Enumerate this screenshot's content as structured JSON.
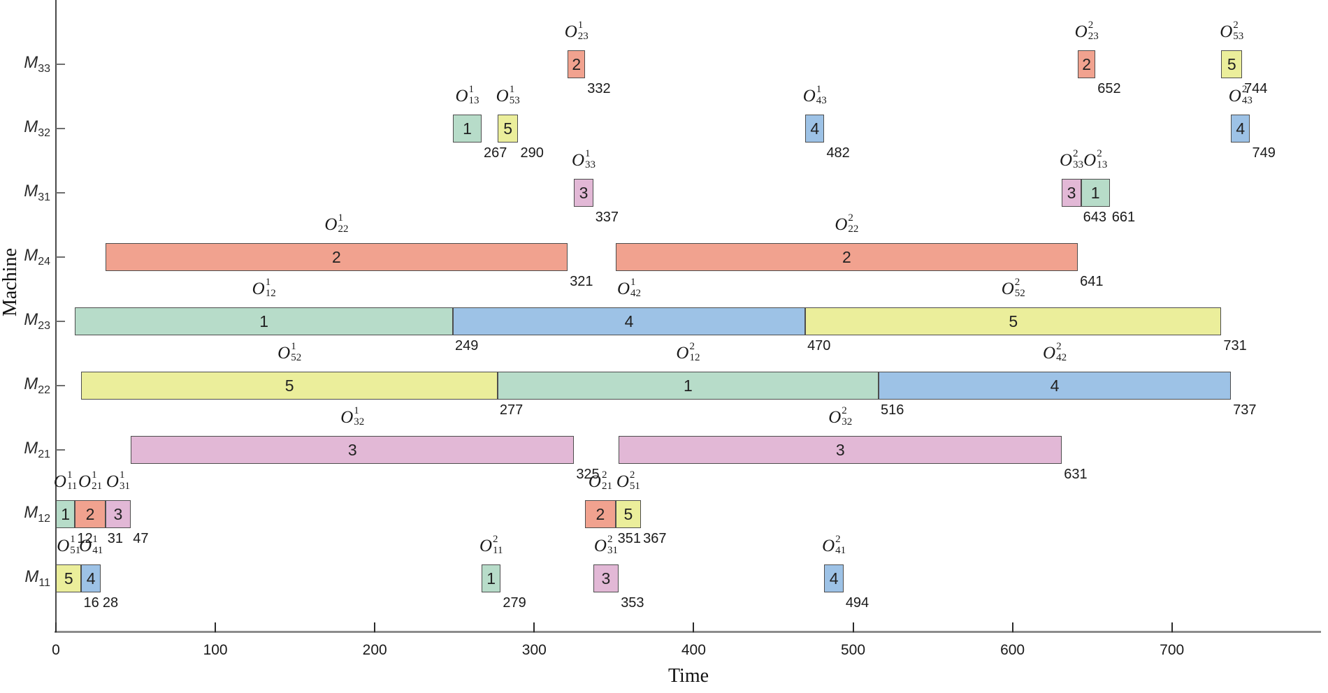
{
  "figure": {
    "background": "#ffffff"
  },
  "chart_data": {
    "type": "gantt",
    "title": "",
    "xlabel": "Time",
    "ylabel": "Machine",
    "xlim": [
      0,
      798
    ],
    "xticks": [
      0,
      100,
      200,
      300,
      400,
      500,
      600,
      700
    ],
    "grid": "off",
    "machines_bottom_to_top": [
      "M11",
      "M12",
      "M21",
      "M22",
      "M23",
      "M24",
      "M31",
      "M32",
      "M33"
    ],
    "job_colors": {
      "1": "#b7dcc9",
      "2": "#f1a28f",
      "3": "#e2b8d6",
      "4": "#9dc2e6",
      "5": "#ebee9b"
    },
    "bar_border_color": "#4d4d4d",
    "operations": [
      {
        "machine": "M11",
        "job": 5,
        "pass": 1,
        "op": "51",
        "start": 0,
        "end": 16,
        "end_label": "16"
      },
      {
        "machine": "M11",
        "job": 4,
        "pass": 1,
        "op": "41",
        "start": 16,
        "end": 28,
        "end_label": "28"
      },
      {
        "machine": "M11",
        "job": 1,
        "pass": 2,
        "op": "11",
        "start": 267,
        "end": 279,
        "end_label": "279"
      },
      {
        "machine": "M11",
        "job": 3,
        "pass": 2,
        "op": "31",
        "start": 337,
        "end": 353,
        "end_label": "353"
      },
      {
        "machine": "M11",
        "job": 4,
        "pass": 2,
        "op": "41",
        "start": 482,
        "end": 494,
        "end_label": "494"
      },
      {
        "machine": "M12",
        "job": 1,
        "pass": 1,
        "op": "11",
        "start": 0,
        "end": 12,
        "end_label": "12"
      },
      {
        "machine": "M12",
        "job": 2,
        "pass": 1,
        "op": "21",
        "start": 12,
        "end": 31,
        "end_label": "31"
      },
      {
        "machine": "M12",
        "job": 3,
        "pass": 1,
        "op": "31",
        "start": 31,
        "end": 47,
        "end_label": "47"
      },
      {
        "machine": "M12",
        "job": 2,
        "pass": 2,
        "op": "21",
        "start": 332,
        "end": 351,
        "end_label": "351"
      },
      {
        "machine": "M12",
        "job": 5,
        "pass": 2,
        "op": "51",
        "start": 351,
        "end": 367,
        "end_label": "367"
      },
      {
        "machine": "M21",
        "job": 3,
        "pass": 1,
        "op": "32",
        "start": 47,
        "end": 325,
        "end_label": "325"
      },
      {
        "machine": "M21",
        "job": 3,
        "pass": 2,
        "op": "32",
        "start": 353,
        "end": 631,
        "end_label": "631"
      },
      {
        "machine": "M22",
        "job": 5,
        "pass": 1,
        "op": "52",
        "start": 16,
        "end": 277,
        "end_label": "277"
      },
      {
        "machine": "M22",
        "job": 1,
        "pass": 2,
        "op": "12",
        "start": 277,
        "end": 516,
        "end_label": "516"
      },
      {
        "machine": "M22",
        "job": 4,
        "pass": 2,
        "op": "42",
        "start": 516,
        "end": 737,
        "end_label": "737"
      },
      {
        "machine": "M23",
        "job": 1,
        "pass": 1,
        "op": "12",
        "start": 12,
        "end": 249,
        "end_label": "249"
      },
      {
        "machine": "M23",
        "job": 4,
        "pass": 1,
        "op": "42",
        "start": 249,
        "end": 470,
        "end_label": "470"
      },
      {
        "machine": "M23",
        "job": 5,
        "pass": 2,
        "op": "52",
        "start": 470,
        "end": 731,
        "end_label": "731"
      },
      {
        "machine": "M24",
        "job": 2,
        "pass": 1,
        "op": "22",
        "start": 31,
        "end": 321,
        "end_label": "321"
      },
      {
        "machine": "M24",
        "job": 2,
        "pass": 2,
        "op": "22",
        "start": 351,
        "end": 641,
        "end_label": "641"
      },
      {
        "machine": "M31",
        "job": 3,
        "pass": 1,
        "op": "33",
        "start": 325,
        "end": 337,
        "end_label": "337"
      },
      {
        "machine": "M31",
        "job": 3,
        "pass": 2,
        "op": "33",
        "start": 631,
        "end": 643,
        "end_label": "643"
      },
      {
        "machine": "M31",
        "job": 1,
        "pass": 2,
        "op": "13",
        "start": 643,
        "end": 661,
        "end_label": "661"
      },
      {
        "machine": "M32",
        "job": 1,
        "pass": 1,
        "op": "13",
        "start": 249,
        "end": 267,
        "end_label": "267"
      },
      {
        "machine": "M32",
        "job": 5,
        "pass": 1,
        "op": "53",
        "start": 277,
        "end": 290,
        "end_label": "290"
      },
      {
        "machine": "M32",
        "job": 4,
        "pass": 1,
        "op": "43",
        "start": 470,
        "end": 482,
        "end_label": "482"
      },
      {
        "machine": "M32",
        "job": 4,
        "pass": 2,
        "op": "43",
        "start": 737,
        "end": 749,
        "end_label": "749"
      },
      {
        "machine": "M33",
        "job": 2,
        "pass": 1,
        "op": "23",
        "start": 321,
        "end": 332,
        "end_label": "332"
      },
      {
        "machine": "M33",
        "job": 2,
        "pass": 2,
        "op": "23",
        "start": 641,
        "end": 652,
        "end_label": "652"
      },
      {
        "machine": "M33",
        "job": 5,
        "pass": 2,
        "op": "53",
        "start": 731,
        "end": 744,
        "end_label": "744"
      }
    ]
  }
}
